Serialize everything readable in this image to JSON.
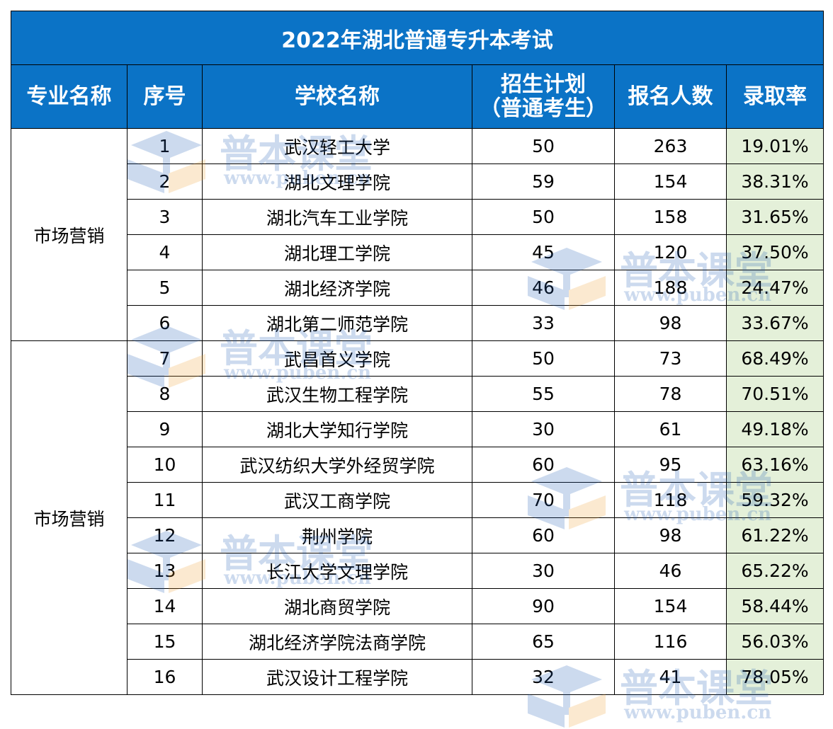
{
  "title": "2022年湖北普通专升本考试",
  "headers": {
    "major": "专业名称",
    "index": "序号",
    "school": "学校名称",
    "plan_line1": "招生计划",
    "plan_line2": "（普通考生）",
    "applicants": "报名人数",
    "rate": "录取率"
  },
  "groups": [
    {
      "major": "市场营销",
      "rows": [
        {
          "index": "1",
          "school": "武汉轻工大学",
          "plan": "50",
          "applicants": "263",
          "rate": "19.01%"
        },
        {
          "index": "2",
          "school": "湖北文理学院",
          "plan": "59",
          "applicants": "154",
          "rate": "38.31%"
        },
        {
          "index": "3",
          "school": "湖北汽车工业学院",
          "plan": "50",
          "applicants": "158",
          "rate": "31.65%"
        },
        {
          "index": "4",
          "school": "湖北理工学院",
          "plan": "45",
          "applicants": "120",
          "rate": "37.50%"
        },
        {
          "index": "5",
          "school": "湖北经济学院",
          "plan": "46",
          "applicants": "188",
          "rate": "24.47%"
        },
        {
          "index": "6",
          "school": "湖北第二师范学院",
          "plan": "33",
          "applicants": "98",
          "rate": "33.67%"
        }
      ]
    },
    {
      "major": "市场营销",
      "rows": [
        {
          "index": "7",
          "school": "武昌首义学院",
          "plan": "50",
          "applicants": "73",
          "rate": "68.49%"
        },
        {
          "index": "8",
          "school": "武汉生物工程学院",
          "plan": "55",
          "applicants": "78",
          "rate": "70.51%"
        },
        {
          "index": "9",
          "school": "湖北大学知行学院",
          "plan": "30",
          "applicants": "61",
          "rate": "49.18%"
        },
        {
          "index": "10",
          "school": "武汉纺织大学外经贸学院",
          "plan": "60",
          "applicants": "95",
          "rate": "63.16%"
        },
        {
          "index": "11",
          "school": "武汉工商学院",
          "plan": "70",
          "applicants": "118",
          "rate": "59.32%"
        },
        {
          "index": "12",
          "school": "荆州学院",
          "plan": "60",
          "applicants": "98",
          "rate": "61.22%"
        },
        {
          "index": "13",
          "school": "长江大学文理学院",
          "plan": "30",
          "applicants": "46",
          "rate": "65.22%"
        },
        {
          "index": "14",
          "school": "湖北商贸学院",
          "plan": "90",
          "applicants": "154",
          "rate": "58.44%"
        },
        {
          "index": "15",
          "school": "湖北经济学院法商学院",
          "plan": "65",
          "applicants": "116",
          "rate": "56.03%"
        },
        {
          "index": "16",
          "school": "武汉设计工程学院",
          "plan": "32",
          "applicants": "41",
          "rate": "78.05%"
        }
      ]
    }
  ],
  "watermark": {
    "brand": "普本课堂",
    "url": "www.puben.cn",
    "icon": "book-graduation-cap-icon",
    "colors": {
      "blue": "#1d5bb5",
      "orange": "#f0a030"
    }
  },
  "colors": {
    "header_bg": "#0b73c6",
    "header_text": "#ffffff",
    "rate_bg": "#e4f0d9"
  }
}
